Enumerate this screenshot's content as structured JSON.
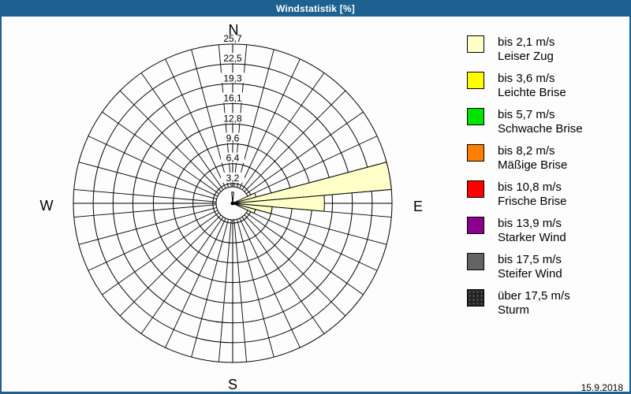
{
  "window": {
    "title": "Windstatistik [%]",
    "date": "15.9.2018"
  },
  "colors": {
    "titlebar": "#1d6191",
    "background": "#fcfdfc",
    "grid": "#000000",
    "petal_fill": "#ffffc8"
  },
  "legend": {
    "items": [
      {
        "label_speed": "bis 2,1 m/s",
        "label_name": "Leiser Zug",
        "color": "#ffffc8",
        "pattern": "solid"
      },
      {
        "label_speed": "bis 3,6 m/s",
        "label_name": "Leichte Brise",
        "color": "#ffff00",
        "pattern": "solid"
      },
      {
        "label_speed": "bis 5,7 m/s",
        "label_name": "Schwache Brise",
        "color": "#00e400",
        "pattern": "solid"
      },
      {
        "label_speed": "bis 8,2 m/s",
        "label_name": "Mäßige Brise",
        "color": "#ff8000",
        "pattern": "solid"
      },
      {
        "label_speed": "bis 10,8 m/s",
        "label_name": "Frische Brise",
        "color": "#ff0000",
        "pattern": "solid"
      },
      {
        "label_speed": "bis 13,9 m/s",
        "label_name": "Starker Wind",
        "color": "#8b008b",
        "pattern": "solid"
      },
      {
        "label_speed": "bis 17,5 m/s",
        "label_name": "Steifer Wind",
        "color": "#636363",
        "pattern": "solid"
      },
      {
        "label_speed": "über 17,5 m/s",
        "label_name": "Sturm",
        "color": "#242424",
        "pattern": "dots"
      }
    ]
  },
  "chart_data": {
    "type": "windrose-polar-bar",
    "title": "Windstatistik [%]",
    "units": "%",
    "compass_labels": [
      "N",
      "E",
      "S",
      "W"
    ],
    "ring_values": [
      3.2,
      6.4,
      9.6,
      12.8,
      16.1,
      19.3,
      22.5,
      25.7
    ],
    "ring_labels": [
      "3,2",
      "6,4",
      "9,6",
      "12,8",
      "16,1",
      "19,3",
      "22,5",
      "25,7"
    ],
    "max_value": 25.7,
    "sector_count": 36,
    "sector_width_deg": 10,
    "petal_color": "#ffffc8",
    "petal_class": "bis 2,1 m/s",
    "petals": [
      {
        "bearing_deg": 0,
        "value": 1.8
      },
      {
        "bearing_deg": 70,
        "value": 3.9
      },
      {
        "bearing_deg": 80,
        "value": 25.7
      },
      {
        "bearing_deg": 90,
        "value": 14.8
      },
      {
        "bearing_deg": 100,
        "value": 6.4
      },
      {
        "bearing_deg": 110,
        "value": 3.8
      }
    ]
  }
}
